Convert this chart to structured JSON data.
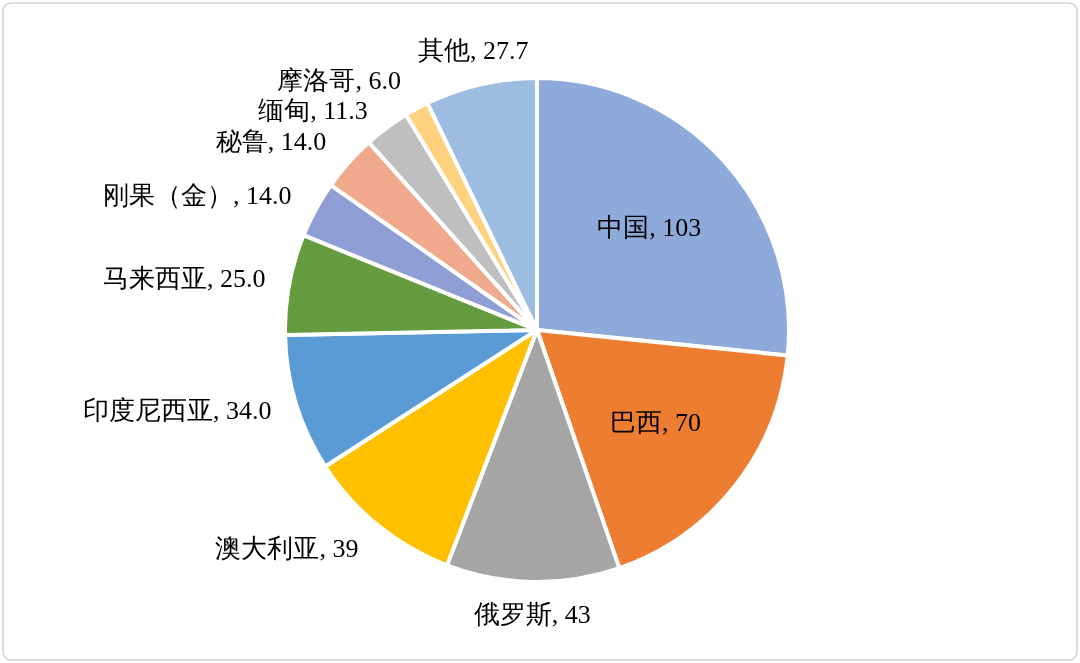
{
  "chart_data": {
    "type": "pie",
    "categories": [
      "中国",
      "巴西",
      "俄罗斯",
      "澳大利亚",
      "印度尼西亚",
      "马来西亚",
      "刚果（金）",
      "秘鲁",
      "缅甸",
      "摩洛哥",
      "其他"
    ],
    "values": [
      103,
      70,
      43,
      39,
      34.0,
      25.0,
      14.0,
      14.0,
      11.3,
      6.0,
      27.7
    ],
    "value_labels": [
      "103",
      "70",
      "43",
      "39",
      "34.0",
      "25.0",
      "14.0",
      "14.0",
      "11.3",
      "6.0",
      "27.7"
    ],
    "colors": [
      "#8eaadb",
      "#ed7d31",
      "#a5a5a5",
      "#ffc000",
      "#5b9bd5",
      "#659c3f",
      "#8f9fd6",
      "#f0a98c",
      "#bfbfbf",
      "#ffd27f",
      "#9dbde0"
    ]
  }
}
